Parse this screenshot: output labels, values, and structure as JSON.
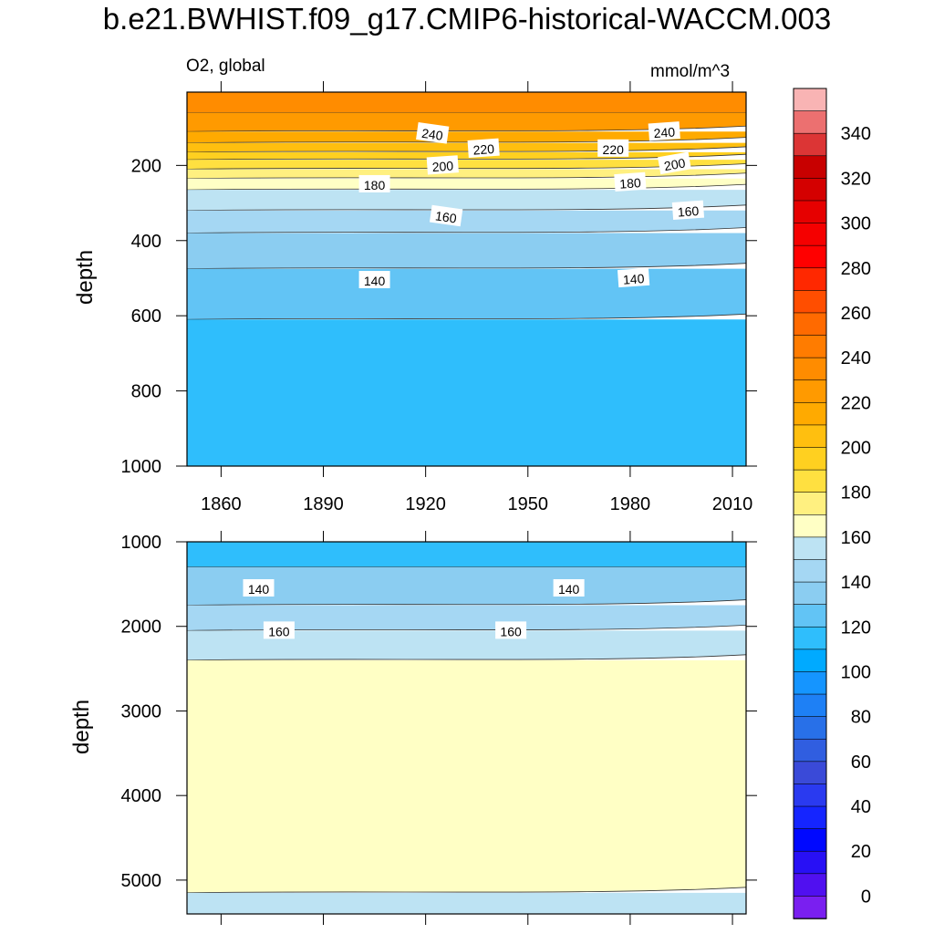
{
  "title": "b.e21.BWHIST.f09_g17.CMIP6-historical-WACCM.003",
  "chart_data": [
    {
      "type": "heatmap",
      "panel": "top",
      "variable_label": "O2, global",
      "units": "mmol/m^3",
      "xlabel": "",
      "ylabel": "depth",
      "xlim": [
        1850,
        2014
      ],
      "ylim": [
        1000,
        5
      ],
      "x_ticks": [
        1860,
        1890,
        1920,
        1950,
        1980,
        2010
      ],
      "y_ticks": [
        200,
        400,
        600,
        800,
        1000
      ],
      "contour_levels": [
        240,
        220,
        200,
        180,
        160,
        140
      ],
      "filled_bands": [
        {
          "range": "250-260",
          "color": "#ff8c00",
          "depth_top": 5,
          "depth_bottom": 60
        },
        {
          "range": "240-250",
          "color": "#ff9a00",
          "depth_top": 60,
          "depth_bottom": 110
        },
        {
          "range": "230-240",
          "color": "#ffaa00",
          "depth_top": 110,
          "depth_bottom": 140
        },
        {
          "range": "220-230",
          "color": "#ffbf0f",
          "depth_top": 140,
          "depth_bottom": 165
        },
        {
          "range": "210-220",
          "color": "#ffd020",
          "depth_top": 165,
          "depth_bottom": 185
        },
        {
          "range": "200-210",
          "color": "#ffe040",
          "depth_top": 185,
          "depth_bottom": 210
        },
        {
          "range": "190-200",
          "color": "#fff080",
          "depth_top": 210,
          "depth_bottom": 235
        },
        {
          "range": "180-190",
          "color": "#ffffc5",
          "depth_top": 235,
          "depth_bottom": 265
        },
        {
          "range": "160-170",
          "color": "#bde3f3",
          "depth_top": 265,
          "depth_bottom": 320
        },
        {
          "range": "150-160",
          "color": "#a5d7f3",
          "depth_top": 320,
          "depth_bottom": 380
        },
        {
          "range": "140-150",
          "color": "#8bcdf1",
          "depth_top": 380,
          "depth_bottom": 475
        },
        {
          "range": "130-140",
          "color": "#62c4f5",
          "depth_top": 475,
          "depth_bottom": 610
        },
        {
          "range": "120-130",
          "color": "#2fbefc",
          "depth_top": 610,
          "depth_bottom": 1000
        }
      ],
      "contour_labels": [
        {
          "text": "240",
          "year": 1922,
          "depth": 115,
          "angle": 8
        },
        {
          "text": "240",
          "year": 1990,
          "depth": 110,
          "angle": -4
        },
        {
          "text": "220",
          "year": 1937,
          "depth": 155,
          "angle": -4
        },
        {
          "text": "220",
          "year": 1975,
          "depth": 155,
          "angle": 0
        },
        {
          "text": "200",
          "year": 1925,
          "depth": 200,
          "angle": -4
        },
        {
          "text": "200",
          "year": 1993,
          "depth": 195,
          "angle": -10
        },
        {
          "text": "180",
          "year": 1905,
          "depth": 250,
          "angle": 0
        },
        {
          "text": "180",
          "year": 1980,
          "depth": 245,
          "angle": -4
        },
        {
          "text": "160",
          "year": 1926,
          "depth": 335,
          "angle": 8
        },
        {
          "text": "160",
          "year": 1997,
          "depth": 320,
          "angle": -4
        },
        {
          "text": "140",
          "year": 1905,
          "depth": 505,
          "angle": 0
        },
        {
          "text": "140",
          "year": 1981,
          "depth": 500,
          "angle": -4
        }
      ]
    },
    {
      "type": "heatmap",
      "panel": "bottom",
      "xlabel": "",
      "ylabel": "depth",
      "xlim": [
        1850,
        2014
      ],
      "ylim": [
        5400,
        1000
      ],
      "y_ticks": [
        1000,
        2000,
        3000,
        4000,
        5000
      ],
      "contour_levels": [
        140,
        160
      ],
      "filled_bands": [
        {
          "range": "130-140",
          "color": "#2fbefc",
          "depth_top": 1000,
          "depth_bottom": 1300
        },
        {
          "range": "140-150",
          "color": "#8bcdf1",
          "depth_top": 1300,
          "depth_bottom": 1750
        },
        {
          "range": "150-160",
          "color": "#a5d7f3",
          "depth_top": 1750,
          "depth_bottom": 2050
        },
        {
          "range": "160-170",
          "color": "#bde3f3",
          "depth_top": 2050,
          "depth_bottom": 2400
        },
        {
          "range": "180-190",
          "color": "#ffffc5",
          "depth_top": 2400,
          "depth_bottom": 5150
        },
        {
          "range": "160-170",
          "color": "#bde3f3",
          "depth_top": 5150,
          "depth_bottom": 5400
        }
      ],
      "contour_labels": [
        {
          "text": "140",
          "year": 1871,
          "depth": 1550,
          "angle": 0
        },
        {
          "text": "140",
          "year": 1962,
          "depth": 1550,
          "angle": 0
        },
        {
          "text": "160",
          "year": 1877,
          "depth": 2050,
          "angle": 0
        },
        {
          "text": "160",
          "year": 1945,
          "depth": 2050,
          "angle": 0
        }
      ]
    }
  ],
  "colorbar": {
    "tick_labels": [
      "340",
      "320",
      "300",
      "280",
      "260",
      "240",
      "220",
      "200",
      "180",
      "160",
      "140",
      "120",
      "100",
      "80",
      "60",
      "40",
      "20",
      "0"
    ],
    "colors": [
      "#f9b4b4",
      "#ec7070",
      "#dc3535",
      "#c80000",
      "#d40000",
      "#e60000",
      "#f50000",
      "#ff0000",
      "#ff2800",
      "#ff4e00",
      "#ff6a00",
      "#ff7c00",
      "#ff8c00",
      "#ff9a00",
      "#ffaa00",
      "#ffbf0f",
      "#ffd020",
      "#ffe040",
      "#fff080",
      "#ffffc5",
      "#bde3f3",
      "#a5d7f3",
      "#8bcdf1",
      "#62c4f5",
      "#2fbefc",
      "#00aaff",
      "#1595ff",
      "#1e80f5",
      "#2870e8",
      "#305ee0",
      "#3a4ad8",
      "#2a3af0",
      "#1525ff",
      "#0008ff",
      "#2810f5",
      "#5010f0",
      "#7a1ff0"
    ]
  }
}
